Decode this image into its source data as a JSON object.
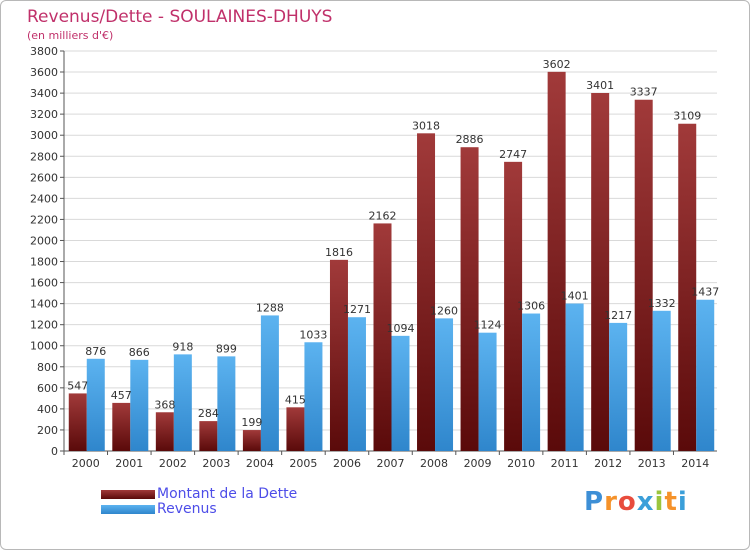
{
  "header": {
    "title": "Revenus/Dette - SOULAINES-DHUYS",
    "subtitle": "(en milliers d'€)"
  },
  "legend": {
    "debt_label": "Montant de la Dette",
    "revenue_label": "Revenus"
  },
  "logo": {
    "letters": [
      "P",
      "r",
      "o",
      "x",
      "i",
      "t",
      "i"
    ],
    "colors": [
      "#3d8fd6",
      "#f5922a",
      "#e84c3d",
      "#3b9fd9",
      "#9bc53d",
      "#f5922a",
      "#3b9fd9"
    ]
  },
  "colors": {
    "debt": "#8b1a1a",
    "revenue": "#4da6e8"
  },
  "chart_data": {
    "type": "bar",
    "title": "Revenus/Dette - SOULAINES-DHUYS",
    "ylabel": "(en milliers d'€)",
    "xlabel": "",
    "ylim": [
      0,
      3800
    ],
    "ytick_step": 200,
    "grid": true,
    "legend_position": "bottom-left",
    "categories": [
      "2000",
      "2001",
      "2002",
      "2003",
      "2004",
      "2005",
      "2006",
      "2007",
      "2008",
      "2009",
      "2010",
      "2011",
      "2012",
      "2013",
      "2014"
    ],
    "series": [
      {
        "name": "Montant de la Dette",
        "values": [
          547,
          457,
          368,
          284,
          199,
          415,
          1816,
          2162,
          3018,
          2886,
          2747,
          3602,
          3401,
          3337,
          3109
        ]
      },
      {
        "name": "Revenus",
        "values": [
          876,
          866,
          918,
          899,
          1288,
          1033,
          1271,
          1094,
          1260,
          1124,
          1306,
          1401,
          1217,
          1332,
          1437
        ]
      }
    ]
  }
}
